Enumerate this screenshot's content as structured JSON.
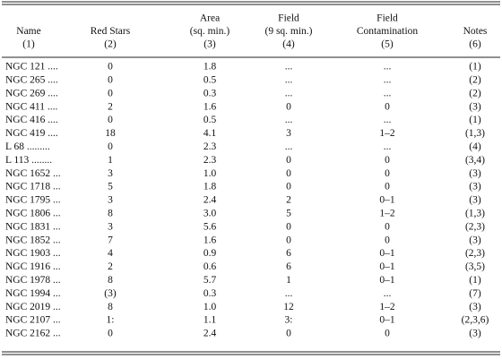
{
  "table": {
    "columns": [
      [
        "Name",
        "(1)"
      ],
      [
        "Red Stars",
        "(2)"
      ],
      [
        "Area",
        "(sq. min.)",
        "(3)"
      ],
      [
        "Field",
        "(9 sq. min.)",
        "(4)"
      ],
      [
        "Field",
        "Contamination",
        "(5)"
      ],
      [
        "Notes",
        "(6)"
      ]
    ],
    "rows": [
      [
        "NGC 121 ....",
        "0",
        "1.8",
        "...",
        "...",
        "(1)"
      ],
      [
        "NGC 265 ....",
        "0",
        "0.5",
        "...",
        "...",
        "(2)"
      ],
      [
        "NGC 269 ....",
        "0",
        "0.3",
        "...",
        "...",
        "(2)"
      ],
      [
        "NGC 411 ....",
        "2",
        "1.6",
        "0",
        "0",
        "(3)"
      ],
      [
        "NGC 416 ....",
        "0",
        "0.5",
        "...",
        "...",
        "(1)"
      ],
      [
        "NGC 419 ....",
        "18",
        "4.1",
        "3",
        "1–2",
        "(1,3)"
      ],
      [
        "L 68 .........",
        "0",
        "2.3",
        "...",
        "...",
        "(4)"
      ],
      [
        "L 113 ........",
        "1",
        "2.3",
        "0",
        "0",
        "(3,4)"
      ],
      [
        "NGC 1652 ...",
        "3",
        "1.0",
        "0",
        "0",
        "(3)"
      ],
      [
        "NGC 1718 ...",
        "5",
        "1.8",
        "0",
        "0",
        "(3)"
      ],
      [
        "NGC 1795 ...",
        "3",
        "2.4",
        "2",
        "0–1",
        "(3)"
      ],
      [
        "NGC 1806 ...",
        "8",
        "3.0",
        "5",
        "1–2",
        "(1,3)"
      ],
      [
        "NGC 1831 ...",
        "3",
        "5.6",
        "0",
        "0",
        "(2,3)"
      ],
      [
        "NGC 1852 ...",
        "7",
        "1.6",
        "0",
        "0",
        "(3)"
      ],
      [
        "NGC 1903 ...",
        "4",
        "0.9",
        "6",
        "0–1",
        "(2,3)"
      ],
      [
        "NGC 1916 ...",
        "2",
        "0.6",
        "6",
        "0–1",
        "(3,5)"
      ],
      [
        "NGC 1978 ...",
        "8",
        "5.7",
        "1",
        "0–1",
        "(1)"
      ],
      [
        "NGC 1994 ...",
        "(3)",
        "0.3",
        "...",
        "...",
        "(7)"
      ],
      [
        "NGC 2019 ...",
        "8",
        "1.0",
        "12",
        "1–2",
        "(3)"
      ],
      [
        "NGC 2107 ...",
        "1:",
        "1.1",
        "3:",
        "0–1",
        "(2,3,6)"
      ],
      [
        "NGC 2162 ...",
        "0",
        "2.4",
        "0",
        "0",
        "(3)"
      ]
    ]
  }
}
